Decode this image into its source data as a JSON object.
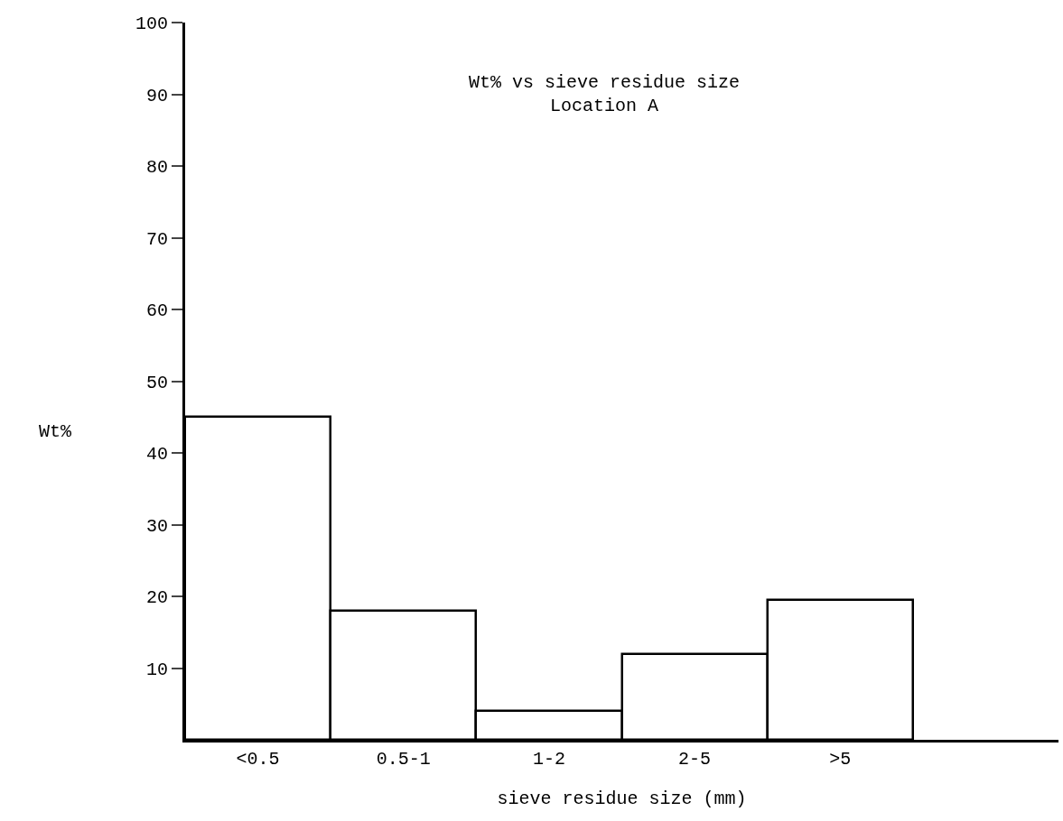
{
  "chart_data": {
    "type": "bar",
    "title": "Wt% vs sieve residue size",
    "subtitle": "Location A",
    "xlabel": "sieve residue size (mm)",
    "ylabel": "Wt%",
    "categories": [
      "<0.5",
      "0.5-1",
      "1-2",
      "2-5",
      ">5"
    ],
    "values": [
      45,
      18,
      4,
      12,
      19.5
    ],
    "color": "#ffffff",
    "ylim": [
      0,
      100
    ],
    "yticks": [
      10,
      20,
      30,
      40,
      50,
      60,
      70,
      80,
      90,
      100
    ],
    "grid": false
  }
}
